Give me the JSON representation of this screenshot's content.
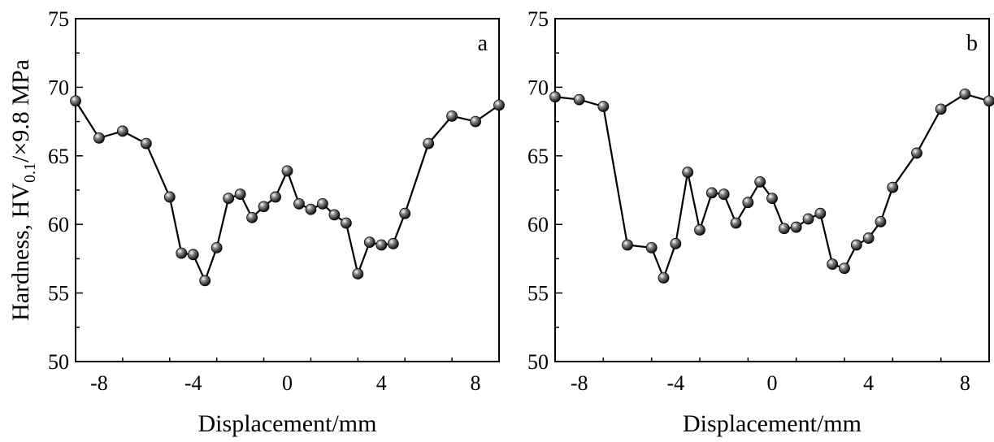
{
  "chart_data": [
    {
      "type": "line",
      "panel_label": "a",
      "xlabel": "Displacement/mm",
      "ylabel": {
        "main": "Hardness, HV",
        "sub": "0.1",
        "suffix": "/×9.8 MPa"
      },
      "xlim": [
        -9,
        9
      ],
      "ylim": [
        50,
        75
      ],
      "xticks": [
        -8,
        -4,
        0,
        4,
        8
      ],
      "yticks": [
        50,
        55,
        60,
        65,
        70,
        75
      ],
      "x": [
        -9,
        -8,
        -7,
        -6,
        -5,
        -4.5,
        -4,
        -3.5,
        -3,
        -2.5,
        -2,
        -1.5,
        -1,
        -0.5,
        0,
        0.5,
        1,
        1.5,
        2,
        2.5,
        3,
        3.5,
        4,
        4.5,
        5,
        6,
        7,
        8,
        9
      ],
      "y": [
        69.0,
        66.3,
        66.8,
        65.9,
        62.0,
        57.9,
        57.8,
        55.9,
        58.3,
        61.9,
        62.2,
        60.5,
        61.3,
        62.0,
        63.9,
        61.5,
        61.1,
        61.5,
        60.7,
        60.1,
        56.4,
        58.7,
        58.5,
        58.6,
        60.8,
        65.9,
        67.9,
        67.5,
        68.7
      ]
    },
    {
      "type": "line",
      "panel_label": "b",
      "xlabel": "Displacement/mm",
      "xlim": [
        -9,
        9
      ],
      "ylim": [
        50,
        75
      ],
      "xticks": [
        -8,
        -4,
        0,
        4,
        8
      ],
      "yticks": [
        50,
        55,
        60,
        65,
        70,
        75
      ],
      "x": [
        -9,
        -8,
        -7,
        -6,
        -5,
        -4.5,
        -4,
        -3.5,
        -3,
        -2.5,
        -2,
        -1.5,
        -1,
        -0.5,
        0,
        0.5,
        1,
        1.5,
        2,
        2.5,
        3,
        3.5,
        4,
        4.5,
        5,
        6,
        7,
        8,
        9
      ],
      "y": [
        69.3,
        69.1,
        68.6,
        58.5,
        58.3,
        56.1,
        58.6,
        63.8,
        59.6,
        62.3,
        62.2,
        60.1,
        61.6,
        63.1,
        61.9,
        59.7,
        59.8,
        60.4,
        60.8,
        57.1,
        56.8,
        58.5,
        59.0,
        60.2,
        62.7,
        65.2,
        68.4,
        69.5,
        69.0
      ]
    }
  ]
}
